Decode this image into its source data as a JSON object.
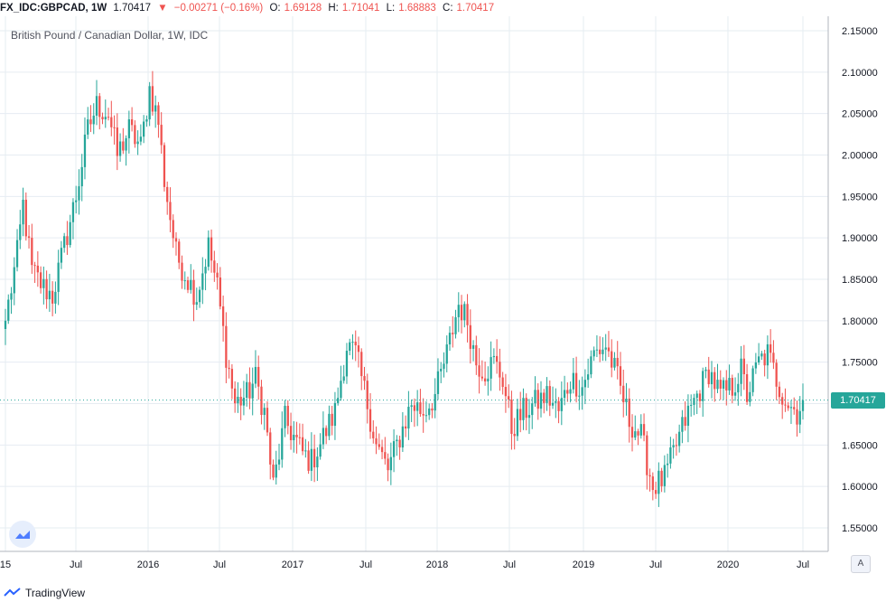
{
  "header": {
    "symbol": "FX_IDC:GBPCAD, 1W",
    "last": "1.70417",
    "arrow": "▼",
    "change": "−0.00271 (−0.16%)",
    "open_label": "O:",
    "open": "1.69128",
    "high_label": "H:",
    "high": "1.71041",
    "low_label": "L:",
    "low": "1.68883",
    "close_label": "C:",
    "close": "1.70417"
  },
  "footer": {
    "brand": "TradingView",
    "auto_badge": "A"
  },
  "colors": {
    "up": "#26a69a",
    "down": "#ef5350",
    "grid": "#e6ecf2",
    "axis_text": "#131722"
  },
  "chart_data": {
    "type": "candlestick",
    "title": "British Pound / Canadian Dollar, 1W, IDC",
    "ylim": [
      1.5,
      2.17
    ],
    "y_ticks": [
      "2.15000",
      "2.10000",
      "2.05000",
      "2.00000",
      "1.95000",
      "1.90000",
      "1.85000",
      "1.80000",
      "1.75000",
      "1.70000",
      "1.65000",
      "1.60000",
      "1.55000"
    ],
    "x_ticks": [
      "15",
      "Jul",
      "2016",
      "Jul",
      "2017",
      "Jul",
      "2018",
      "Jul",
      "2019",
      "Jul",
      "2020",
      "Jul"
    ],
    "last_price": "1.70417",
    "anchors": [
      [
        0,
        1.8
      ],
      [
        4,
        1.88
      ],
      [
        6,
        1.94
      ],
      [
        9,
        1.86
      ],
      [
        13,
        1.84
      ],
      [
        16,
        1.83
      ],
      [
        20,
        1.89
      ],
      [
        24,
        1.95
      ],
      [
        28,
        2.03
      ],
      [
        31,
        2.06
      ],
      [
        35,
        2.05
      ],
      [
        38,
        2.0
      ],
      [
        42,
        2.03
      ],
      [
        46,
        2.01
      ],
      [
        49,
        2.08
      ],
      [
        52,
        2.04
      ],
      [
        54,
        1.97
      ],
      [
        58,
        1.88
      ],
      [
        62,
        1.85
      ],
      [
        65,
        1.83
      ],
      [
        69,
        1.89
      ],
      [
        72,
        1.84
      ],
      [
        75,
        1.76
      ],
      [
        78,
        1.7
      ],
      [
        82,
        1.71
      ],
      [
        85,
        1.73
      ],
      [
        88,
        1.69
      ],
      [
        91,
        1.6
      ],
      [
        95,
        1.68
      ],
      [
        98,
        1.66
      ],
      [
        101,
        1.64
      ],
      [
        104,
        1.63
      ],
      [
        108,
        1.66
      ],
      [
        112,
        1.69
      ],
      [
        116,
        1.77
      ],
      [
        119,
        1.76
      ],
      [
        123,
        1.7
      ],
      [
        126,
        1.65
      ],
      [
        130,
        1.62
      ],
      [
        134,
        1.66
      ],
      [
        138,
        1.7
      ],
      [
        142,
        1.69
      ],
      [
        146,
        1.71
      ],
      [
        150,
        1.76
      ],
      [
        154,
        1.82
      ],
      [
        157,
        1.8
      ],
      [
        160,
        1.75
      ],
      [
        163,
        1.74
      ],
      [
        166,
        1.75
      ],
      [
        169,
        1.73
      ],
      [
        172,
        1.67
      ],
      [
        176,
        1.69
      ],
      [
        180,
        1.7
      ],
      [
        184,
        1.71
      ],
      [
        188,
        1.69
      ],
      [
        192,
        1.73
      ],
      [
        196,
        1.72
      ],
      [
        200,
        1.76
      ],
      [
        204,
        1.77
      ],
      [
        208,
        1.73
      ],
      [
        212,
        1.68
      ],
      [
        216,
        1.66
      ],
      [
        220,
        1.6
      ],
      [
        224,
        1.61
      ],
      [
        227,
        1.64
      ],
      [
        231,
        1.68
      ],
      [
        235,
        1.71
      ],
      [
        239,
        1.74
      ],
      [
        243,
        1.71
      ],
      [
        247,
        1.72
      ],
      [
        250,
        1.74
      ],
      [
        252,
        1.71
      ],
      [
        256,
        1.75
      ],
      [
        259,
        1.76
      ],
      [
        263,
        1.72
      ],
      [
        266,
        1.7
      ],
      [
        269,
        1.69
      ],
      [
        271,
        1.70417
      ]
    ]
  }
}
